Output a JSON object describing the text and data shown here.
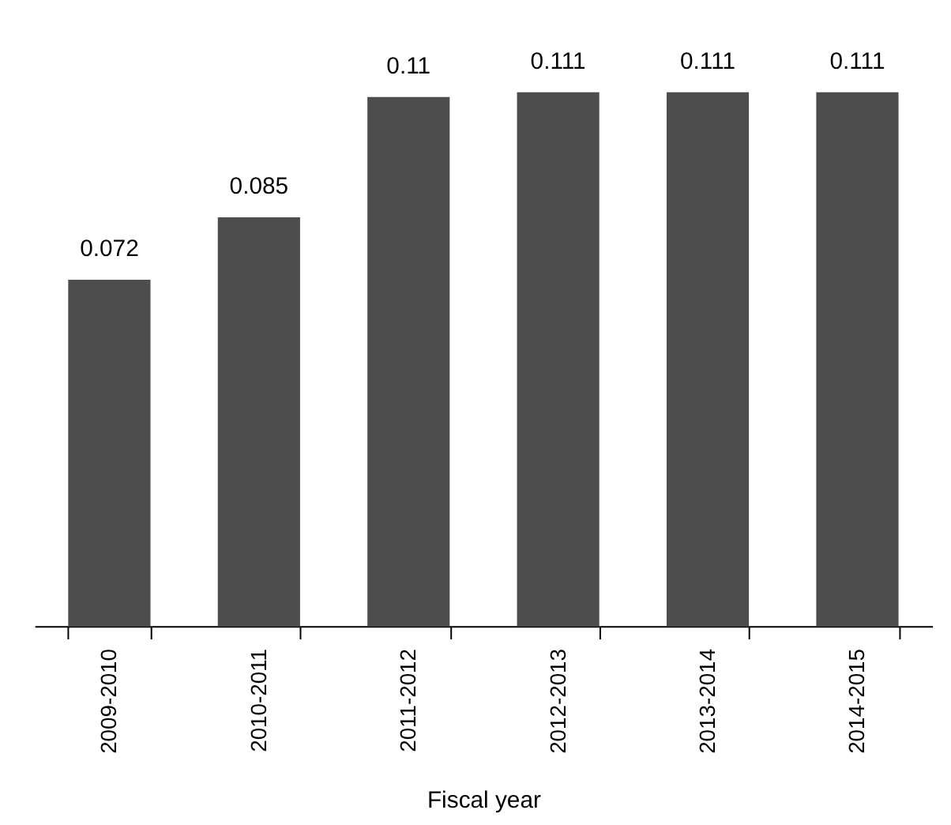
{
  "chart_data": {
    "type": "bar",
    "xlabel": "Fiscal year",
    "categories": [
      "2009-2010",
      "2010-2011",
      "2011-2012",
      "2012-2013",
      "2013-2014",
      "2014-2015"
    ],
    "values": [
      0.072,
      0.085,
      0.11,
      0.111,
      0.111,
      0.111
    ],
    "color": "#4d4d4d",
    "data_labels": true
  }
}
